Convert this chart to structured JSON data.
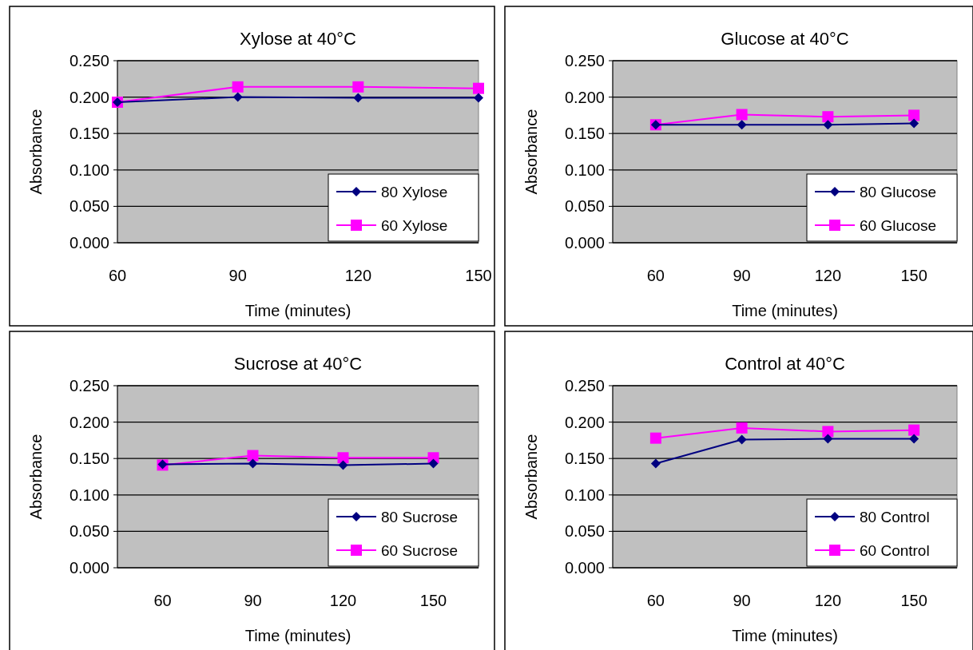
{
  "chart_data": [
    {
      "type": "line",
      "title": "Xylose at 40°C",
      "xlabel": "Time (minutes)",
      "ylabel": "Absorbance",
      "x": [
        60,
        90,
        120,
        150
      ],
      "xlim": [
        60,
        150
      ],
      "xticks": [
        60,
        90,
        120,
        150
      ],
      "ylim": [
        0,
        0.25
      ],
      "yticks": [
        {
          "value": 0,
          "label": "0.000"
        },
        {
          "value": 0.05,
          "label": "0.050"
        },
        {
          "value": 0.1,
          "label": "0.100"
        },
        {
          "value": 0.15,
          "label": "0.150"
        },
        {
          "value": 0.2,
          "label": "0.200"
        },
        {
          "value": 0.25,
          "label": "0.250"
        }
      ],
      "grid": "y",
      "legend": "bottom right",
      "series": [
        {
          "name": "80 Xylose",
          "color": "#000080",
          "marker": "diamond",
          "values": [
            0.193,
            0.2,
            0.199,
            0.199
          ]
        },
        {
          "name": "60 Xylose",
          "color": "#ff00ff",
          "marker": "square",
          "values": [
            0.193,
            0.214,
            0.214,
            0.212
          ]
        }
      ]
    },
    {
      "type": "line",
      "title": "Glucose at 40°C",
      "xlabel": "Time (minutes)",
      "ylabel": "Absorbance",
      "categories": [
        "60",
        "90",
        "120",
        "150"
      ],
      "ylim": [
        0,
        0.25
      ],
      "yticks": [
        {
          "value": 0,
          "label": "0.000"
        },
        {
          "value": 0.05,
          "label": "0.050"
        },
        {
          "value": 0.1,
          "label": "0.100"
        },
        {
          "value": 0.15,
          "label": "0.150"
        },
        {
          "value": 0.2,
          "label": "0.200"
        },
        {
          "value": 0.25,
          "label": "0.250"
        }
      ],
      "grid": "y",
      "legend": "bottom right",
      "series": [
        {
          "name": "80 Glucose",
          "color": "#000080",
          "marker": "diamond",
          "values": [
            0.162,
            0.162,
            0.162,
            0.164
          ]
        },
        {
          "name": "60 Glucose",
          "color": "#ff00ff",
          "marker": "square",
          "values": [
            0.162,
            0.176,
            0.173,
            0.175
          ]
        }
      ]
    },
    {
      "type": "line",
      "title": "Sucrose at 40°C",
      "xlabel": "Time (minutes)",
      "ylabel": "Absorbance",
      "categories": [
        "60",
        "90",
        "120",
        "150"
      ],
      "ylim": [
        0,
        0.25
      ],
      "yticks": [
        {
          "value": 0,
          "label": "0.000"
        },
        {
          "value": 0.05,
          "label": "0.050"
        },
        {
          "value": 0.1,
          "label": "0.100"
        },
        {
          "value": 0.15,
          "label": "0.150"
        },
        {
          "value": 0.2,
          "label": "0.200"
        },
        {
          "value": 0.25,
          "label": "0.250"
        }
      ],
      "grid": "y",
      "legend": "bottom right",
      "series": [
        {
          "name": "80 Sucrose",
          "color": "#000080",
          "marker": "diamond",
          "values": [
            0.142,
            0.143,
            0.141,
            0.143
          ]
        },
        {
          "name": "60 Sucrose",
          "color": "#ff00ff",
          "marker": "square",
          "values": [
            0.141,
            0.154,
            0.151,
            0.151
          ]
        }
      ]
    },
    {
      "type": "line",
      "title": "Control at 40°C",
      "xlabel": "Time (minutes)",
      "ylabel": "Absorbance",
      "categories": [
        "60",
        "90",
        "120",
        "150"
      ],
      "ylim": [
        0,
        0.25
      ],
      "yticks": [
        {
          "value": 0,
          "label": "0.000"
        },
        {
          "value": 0.05,
          "label": "0.050"
        },
        {
          "value": 0.1,
          "label": "0.100"
        },
        {
          "value": 0.15,
          "label": "0.150"
        },
        {
          "value": 0.2,
          "label": "0.200"
        },
        {
          "value": 0.25,
          "label": "0.250"
        }
      ],
      "grid": "y",
      "legend": "bottom right",
      "series": [
        {
          "name": "80 Control",
          "color": "#000080",
          "marker": "diamond",
          "values": [
            0.143,
            0.176,
            0.177,
            0.177
          ]
        },
        {
          "name": "60 Control",
          "color": "#ff00ff",
          "marker": "square",
          "values": [
            0.178,
            0.192,
            0.187,
            0.189
          ]
        }
      ]
    }
  ]
}
